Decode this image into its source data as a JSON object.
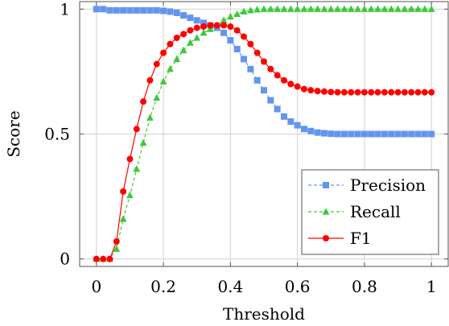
{
  "chart_data": {
    "type": "line",
    "xlabel": "Threshold",
    "ylabel": "Score",
    "xlim": [
      -0.05,
      1.05
    ],
    "ylim": [
      -0.03,
      1.03
    ],
    "xticks": [
      0,
      0.2,
      0.4,
      0.6,
      0.8,
      1
    ],
    "xtick_labels": [
      "0",
      "0.2",
      "0.4",
      "0.6",
      "0.8",
      "1"
    ],
    "yticks": [
      0,
      0.5,
      1
    ],
    "ytick_labels": [
      "0",
      "0.5",
      "1"
    ],
    "grid": true,
    "legend_position": "bottom-right",
    "x": [
      0,
      0.02,
      0.04,
      0.06,
      0.08,
      0.1,
      0.12,
      0.14,
      0.16,
      0.18,
      0.2,
      0.22,
      0.24,
      0.26,
      0.28,
      0.3,
      0.32,
      0.34,
      0.36,
      0.38,
      0.4,
      0.42,
      0.44,
      0.46,
      0.48,
      0.5,
      0.52,
      0.54,
      0.56,
      0.58,
      0.6,
      0.62,
      0.64,
      0.66,
      0.68,
      0.7,
      0.72,
      0.74,
      0.76,
      0.78,
      0.8,
      0.82,
      0.84,
      0.86,
      0.88,
      0.9,
      0.92,
      0.94,
      0.96,
      0.98,
      1
    ],
    "series": [
      {
        "name": "Precision",
        "color": "#6495ED",
        "marker": "square",
        "dash": "dashed",
        "values": [
          1.0,
          1.0,
          0.995,
          0.995,
          0.995,
          0.995,
          0.995,
          0.995,
          0.995,
          0.995,
          0.993,
          0.99,
          0.985,
          0.975,
          0.965,
          0.955,
          0.945,
          0.935,
          0.925,
          0.905,
          0.875,
          0.84,
          0.8,
          0.76,
          0.715,
          0.675,
          0.635,
          0.6,
          0.57,
          0.55,
          0.535,
          0.52,
          0.512,
          0.506,
          0.503,
          0.501,
          0.5,
          0.5,
          0.5,
          0.5,
          0.5,
          0.5,
          0.5,
          0.5,
          0.5,
          0.5,
          0.5,
          0.5,
          0.5,
          0.5,
          0.5
        ]
      },
      {
        "name": "Recall",
        "color": "#3CC93C",
        "marker": "triangle",
        "dash": "dashed",
        "values": [
          0,
          0,
          0,
          0.04,
          0.16,
          0.255,
          0.36,
          0.465,
          0.565,
          0.645,
          0.71,
          0.76,
          0.8,
          0.835,
          0.865,
          0.885,
          0.905,
          0.92,
          0.935,
          0.955,
          0.97,
          0.98,
          0.99,
          0.995,
          0.998,
          1,
          1,
          1,
          1,
          1,
          1,
          1,
          1,
          1,
          1,
          1,
          1,
          1,
          1,
          1,
          1,
          1,
          1,
          1,
          1,
          1,
          1,
          1,
          1,
          1,
          1
        ]
      },
      {
        "name": "F1",
        "color": "#FF0000",
        "marker": "circle",
        "dash": "solid",
        "values": [
          0,
          0,
          0,
          0.07,
          0.27,
          0.4,
          0.52,
          0.63,
          0.715,
          0.78,
          0.825,
          0.86,
          0.885,
          0.9,
          0.915,
          0.925,
          0.93,
          0.935,
          0.935,
          0.935,
          0.93,
          0.915,
          0.89,
          0.86,
          0.825,
          0.79,
          0.76,
          0.735,
          0.715,
          0.7,
          0.69,
          0.68,
          0.675,
          0.672,
          0.67,
          0.668,
          0.667,
          0.667,
          0.667,
          0.667,
          0.667,
          0.667,
          0.667,
          0.667,
          0.667,
          0.667,
          0.667,
          0.667,
          0.667,
          0.667,
          0.667
        ]
      }
    ]
  }
}
